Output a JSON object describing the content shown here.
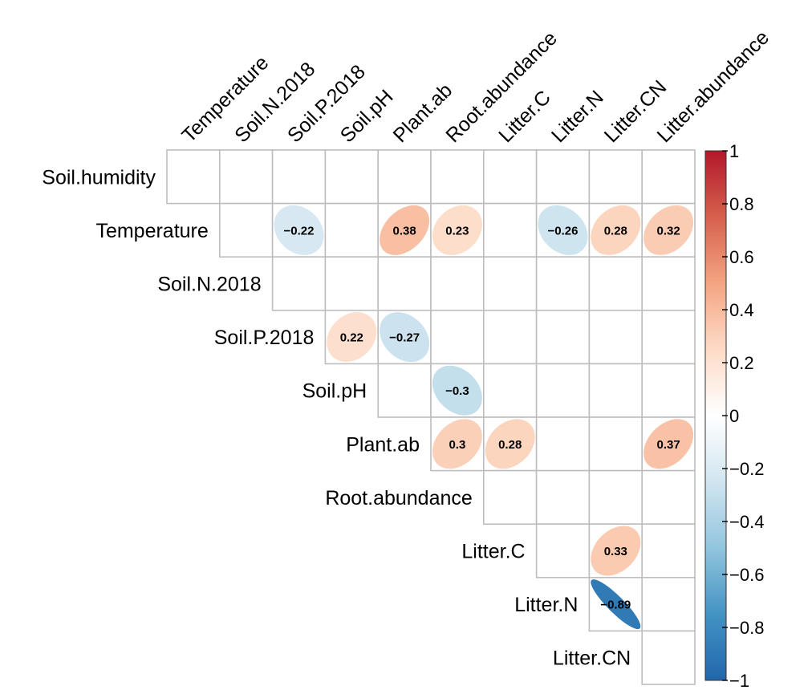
{
  "chart_data": {
    "type": "heatmap",
    "method": "ellipse",
    "layout": "upper triangle",
    "variables": [
      "Soil.humidity",
      "Temperature",
      "Soil.N.2018",
      "Soil.P.2018",
      "Soil.pH",
      "Plant.ab",
      "Root.abundance",
      "Litter.C",
      "Litter.N",
      "Litter.CN",
      "Litter.abundance"
    ],
    "row_labels": [
      "Soil.humidity",
      "Temperature",
      "Soil.N.2018",
      "Soil.P.2018",
      "Soil.pH",
      "Plant.ab",
      "Root.abundance",
      "Litter.C",
      "Litter.N",
      "Litter.CN"
    ],
    "column_labels": [
      "Temperature",
      "Soil.N.2018",
      "Soil.P.2018",
      "Soil.pH",
      "Plant.ab",
      "Root.abundance",
      "Litter.C",
      "Litter.N",
      "Litter.CN",
      "Litter.abundance"
    ],
    "correlations": [
      {
        "row": "Temperature",
        "col": "Soil.P.2018",
        "value": -0.22,
        "label": "−0.22"
      },
      {
        "row": "Temperature",
        "col": "Plant.ab",
        "value": 0.38,
        "label": "0.38"
      },
      {
        "row": "Temperature",
        "col": "Root.abundance",
        "value": 0.23,
        "label": "0.23"
      },
      {
        "row": "Temperature",
        "col": "Litter.N",
        "value": -0.26,
        "label": "−0.26"
      },
      {
        "row": "Temperature",
        "col": "Litter.CN",
        "value": 0.28,
        "label": "0.28"
      },
      {
        "row": "Temperature",
        "col": "Litter.abundance",
        "value": 0.32,
        "label": "0.32"
      },
      {
        "row": "Soil.P.2018",
        "col": "Soil.pH",
        "value": 0.22,
        "label": "0.22"
      },
      {
        "row": "Soil.P.2018",
        "col": "Plant.ab",
        "value": -0.27,
        "label": "−0.27"
      },
      {
        "row": "Soil.pH",
        "col": "Root.abundance",
        "value": -0.3,
        "label": "−0.3"
      },
      {
        "row": "Plant.ab",
        "col": "Root.abundance",
        "value": 0.3,
        "label": "0.3"
      },
      {
        "row": "Plant.ab",
        "col": "Litter.C",
        "value": 0.28,
        "label": "0.28"
      },
      {
        "row": "Plant.ab",
        "col": "Litter.abundance",
        "value": 0.37,
        "label": "0.37"
      },
      {
        "row": "Litter.C",
        "col": "Litter.CN",
        "value": 0.33,
        "label": "0.33"
      },
      {
        "row": "Litter.N",
        "col": "Litter.CN",
        "value": -0.89,
        "label": "−0.89"
      }
    ],
    "colorbar": {
      "range": [
        -1,
        1
      ],
      "ticks": [
        "1",
        "0.8",
        "0.6",
        "0.4",
        "0.2",
        "0",
        "−0.2",
        "−0.4",
        "−0.6",
        "−0.8",
        "−1"
      ],
      "colors": [
        "#2166AC",
        "#4393C3",
        "#92C5DE",
        "#D1E5F0",
        "#FFFFFF",
        "#FDDBC7",
        "#F4A582",
        "#D6604D",
        "#B2182B"
      ]
    },
    "grid": true
  }
}
